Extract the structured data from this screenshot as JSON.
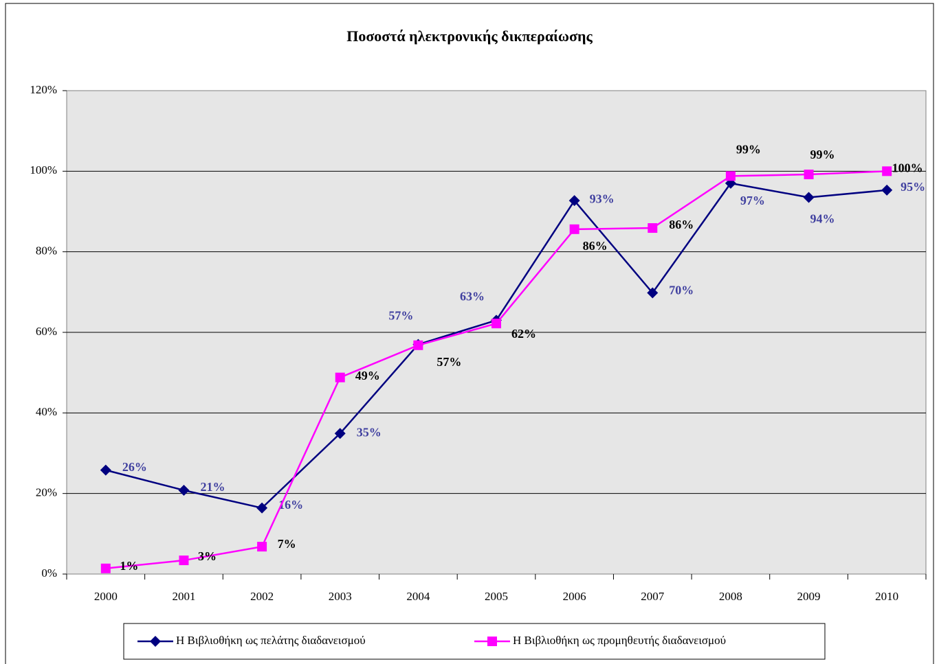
{
  "chart_data": {
    "type": "line",
    "title": "Ποσοστά ηλεκτρονικής δικπεραίωσης",
    "categories": [
      "2000",
      "2001",
      "2002",
      "2003",
      "2004",
      "2005",
      "2006",
      "2007",
      "2008",
      "2009",
      "2010"
    ],
    "series": [
      {
        "name": "Η Βιβλιοθήκη ως πελάτης διαδανεισμού",
        "color": "#000080",
        "label_color": "#3f3f9f",
        "marker": "diamond",
        "values": [
          25.8,
          20.8,
          16.4,
          34.9,
          57,
          63,
          92.7,
          69.8,
          97,
          93.5,
          95.3
        ],
        "value_labels": [
          "26%",
          "21%",
          "16%",
          "35%",
          "57%",
          "63%",
          "93%",
          "70%",
          "97%",
          "94%",
          "95%"
        ]
      },
      {
        "name": "Η Βιβλιοθήκη ως προμηθευτής διαδανεισμού",
        "color": "#ff00ff",
        "label_color": "#000000",
        "marker": "square",
        "values": [
          1.4,
          3.4,
          6.8,
          48.8,
          56.8,
          62.2,
          85.6,
          85.9,
          98.8,
          99.2,
          100
        ],
        "value_labels": [
          "1%",
          "3%",
          "7%",
          "49%",
          "57%",
          "62%",
          "86%",
          "86%",
          "99%",
          "99%",
          "100%"
        ]
      }
    ],
    "ylim": [
      0,
      120
    ],
    "yticks": [
      {
        "value": 0,
        "label": "0%"
      },
      {
        "value": 20,
        "label": "20%"
      },
      {
        "value": 40,
        "label": "40%"
      },
      {
        "value": 60,
        "label": "60%"
      },
      {
        "value": 80,
        "label": "80%"
      },
      {
        "value": 100,
        "label": "100%"
      },
      {
        "value": 120,
        "label": "120%"
      }
    ],
    "grid": true,
    "legend": "bottom"
  }
}
